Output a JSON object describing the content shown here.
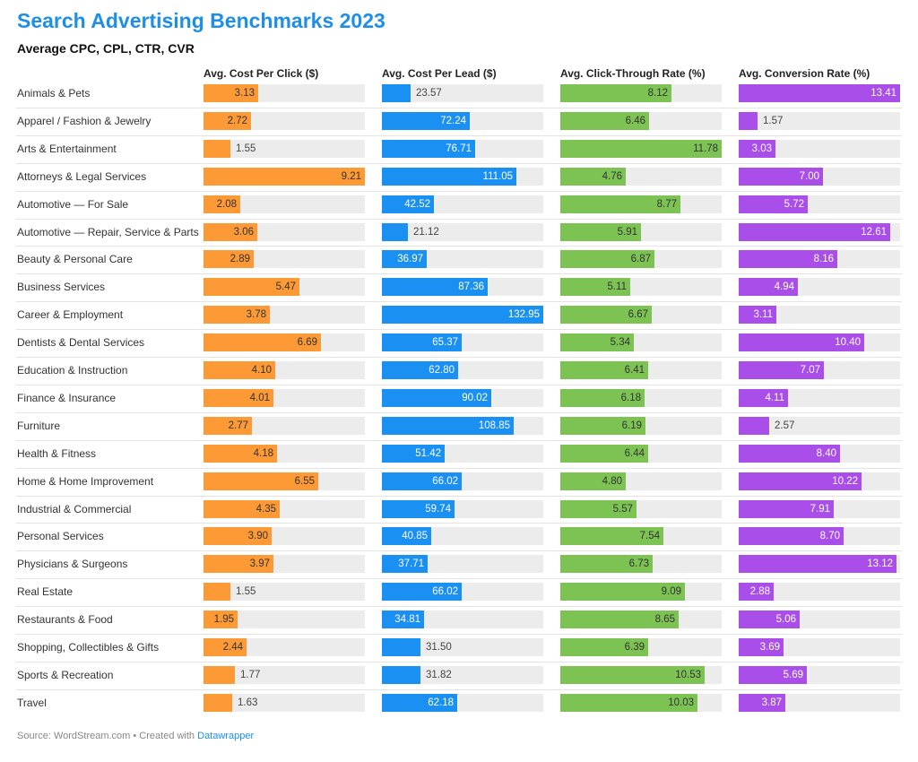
{
  "title": "Search Advertising Benchmarks 2023",
  "subtitle": "Average CPC, CPL, CTR, CVR",
  "footer": {
    "source": "Source: WordStream.com • Created with ",
    "tool": "Datawrapper"
  },
  "chart_data": {
    "type": "bar",
    "title": "Search Advertising Benchmarks 2023",
    "subtitle": "Average CPC, CPL, CTR, CVR",
    "categories": [
      "Animals & Pets",
      "Apparel / Fashion & Jewelry",
      "Arts & Entertainment",
      "Attorneys & Legal Services",
      "Automotive — For Sale",
      "Automotive — Repair, Service & Parts",
      "Beauty & Personal Care",
      "Business Services",
      "Career & Employment",
      "Dentists & Dental Services",
      "Education & Instruction",
      "Finance & Insurance",
      "Furniture",
      "Health & Fitness",
      "Home & Home Improvement",
      "Industrial & Commercial",
      "Personal Services",
      "Physicians & Surgeons",
      "Real Estate",
      "Restaurants & Food",
      "Shopping, Collectibles & Gifts",
      "Sports & Recreation",
      "Travel"
    ],
    "series": [
      {
        "name": "Avg. Cost Per Click ($)",
        "color": "#fd9a36",
        "max": 9.21,
        "values": [
          3.13,
          2.72,
          1.55,
          9.21,
          2.08,
          3.06,
          2.89,
          5.47,
          3.78,
          6.69,
          4.1,
          4.01,
          2.77,
          4.18,
          6.55,
          4.35,
          3.9,
          3.97,
          1.55,
          1.95,
          2.44,
          1.77,
          1.63
        ],
        "labels": [
          "3.13",
          "2.72",
          "1.55",
          "9.21",
          "2.08",
          "3.06",
          "2.89",
          "5.47",
          "3.78",
          "6.69",
          "4.10",
          "4.01",
          "2.77",
          "4.18",
          "6.55",
          "4.35",
          "3.90",
          "3.97",
          "1.55",
          "1.95",
          "2.44",
          "1.77",
          "1.63"
        ]
      },
      {
        "name": "Avg. Cost Per Lead ($)",
        "color": "#1a90f2",
        "max": 132.95,
        "values": [
          23.57,
          72.24,
          76.71,
          111.05,
          42.52,
          21.12,
          36.97,
          87.36,
          132.95,
          65.37,
          62.8,
          90.02,
          108.85,
          51.42,
          66.02,
          59.74,
          40.85,
          37.71,
          66.02,
          34.81,
          31.5,
          31.82,
          62.18
        ],
        "labels": [
          "23.57",
          "72.24",
          "76.71",
          "111.05",
          "42.52",
          "21.12",
          "36.97",
          "87.36",
          "132.95",
          "65.37",
          "62.80",
          "90.02",
          "108.85",
          "51.42",
          "66.02",
          "59.74",
          "40.85",
          "37.71",
          "66.02",
          "34.81",
          "31.50",
          "31.82",
          "62.18"
        ]
      },
      {
        "name": "Avg. Click-Through Rate (%)",
        "color": "#7cc353",
        "max": 11.78,
        "values": [
          8.12,
          6.46,
          11.78,
          4.76,
          8.77,
          5.91,
          6.87,
          5.11,
          6.67,
          5.34,
          6.41,
          6.18,
          6.19,
          6.44,
          4.8,
          5.57,
          7.54,
          6.73,
          9.09,
          8.65,
          6.39,
          10.53,
          10.03
        ],
        "labels": [
          "8.12",
          "6.46",
          "11.78",
          "4.76",
          "8.77",
          "5.91",
          "6.87",
          "5.11",
          "6.67",
          "5.34",
          "6.41",
          "6.18",
          "6.19",
          "6.44",
          "4.80",
          "5.57",
          "7.54",
          "6.73",
          "9.09",
          "8.65",
          "6.39",
          "10.53",
          "10.03"
        ]
      },
      {
        "name": "Avg. Conversion Rate (%)",
        "color": "#a94ee8",
        "max": 13.41,
        "values": [
          13.41,
          1.57,
          3.03,
          7.0,
          5.72,
          12.61,
          8.16,
          4.94,
          3.11,
          10.4,
          7.07,
          4.11,
          2.57,
          8.4,
          10.22,
          7.91,
          8.7,
          13.12,
          2.88,
          5.06,
          3.69,
          5.69,
          3.87
        ],
        "labels": [
          "13.41",
          "1.57",
          "3.03",
          "7.00",
          "5.72",
          "12.61",
          "8.16",
          "4.94",
          "3.11",
          "10.40",
          "7.07",
          "4.11",
          "2.57",
          "8.40",
          "10.22",
          "7.91",
          "8.70",
          "13.12",
          "2.88",
          "5.06",
          "3.69",
          "5.69",
          "3.87"
        ]
      }
    ]
  }
}
